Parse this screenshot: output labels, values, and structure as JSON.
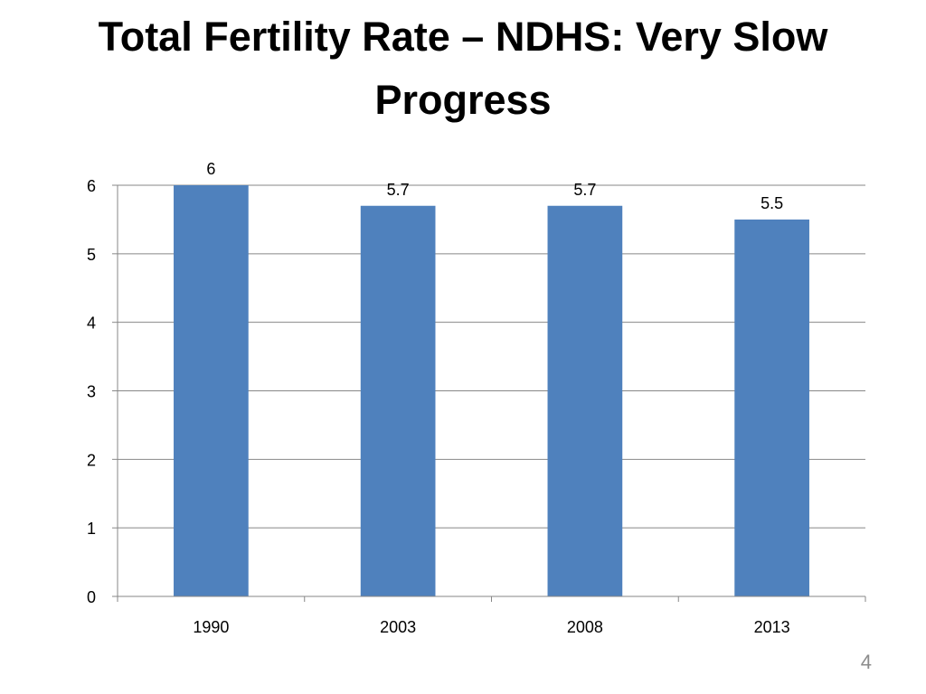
{
  "slide": {
    "title": "Total Fertility Rate – NDHS: Very Slow Progress",
    "page_number": "4"
  },
  "chart_data": {
    "type": "bar",
    "title": "",
    "xlabel": "",
    "ylabel": "",
    "categories": [
      "1990",
      "2003",
      "2008",
      "2013"
    ],
    "values": [
      6,
      5.7,
      5.7,
      5.5
    ],
    "data_labels": [
      "6",
      "5.7",
      "5.7",
      "5.5"
    ],
    "y_ticks": [
      0,
      1,
      2,
      3,
      4,
      5,
      6
    ],
    "ylim": [
      0,
      6
    ],
    "grid": true,
    "legend": "none",
    "colors": {
      "bar": "#4f81bd",
      "grid": "#878787",
      "axis": "#878787"
    }
  }
}
